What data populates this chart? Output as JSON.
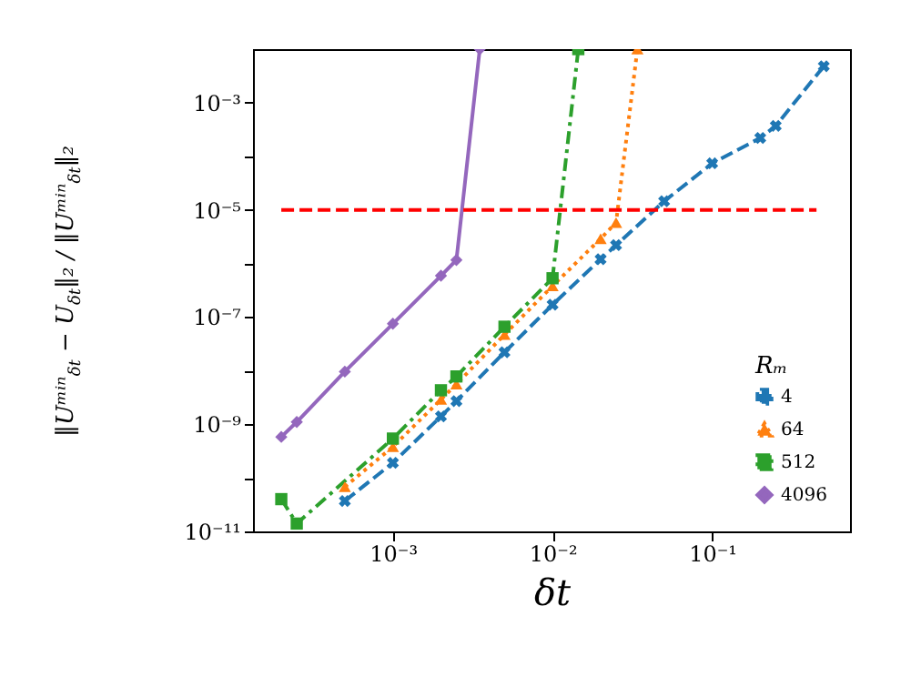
{
  "chart_data": {
    "type": "line",
    "xlabel": "δt",
    "ylabel": "‖Uᵐⁱⁿ$_{δt}$ − U$_{δt}$‖₂ / ‖Uᵐⁱⁿ$_{δt}$‖₂",
    "legend_title": "Rₘ",
    "log": "xy",
    "grid": false,
    "legend": "bottom right",
    "xlim": [
      0.000133,
      0.73
    ],
    "ylim": [
      1e-11,
      0.01
    ],
    "xticks": [
      {
        "value": 0.001,
        "label": "10⁻³"
      },
      {
        "value": 0.01,
        "label": "10⁻²"
      },
      {
        "value": 0.1,
        "label": "10⁻¹"
      }
    ],
    "yticks": [
      {
        "value": 1e-11,
        "label": "10⁻¹¹"
      },
      {
        "value": 1e-10,
        "label": null
      },
      {
        "value": 1e-09,
        "label": "10⁻⁹"
      },
      {
        "value": 1e-08,
        "label": null
      },
      {
        "value": 1e-07,
        "label": "10⁻⁷"
      },
      {
        "value": 1e-06,
        "label": null
      },
      {
        "value": 1e-05,
        "label": "10⁻⁵"
      },
      {
        "value": 0.0001,
        "label": null
      },
      {
        "value": 0.001,
        "label": "10⁻³"
      }
    ],
    "series": [
      {
        "name": "4",
        "color": "#1f77b4",
        "marker": "cross",
        "line_style": "dashed",
        "x": [
          0.0005,
          0.001,
          0.002,
          0.0025,
          0.005,
          0.01,
          0.02,
          0.025,
          0.05,
          0.1,
          0.2,
          0.25,
          0.5
        ],
        "values": [
          3.7e-11,
          1.9e-10,
          1.4e-09,
          2.7e-09,
          2.2e-08,
          1.7e-07,
          1.2e-06,
          2.2e-06,
          1.45e-05,
          7.4e-05,
          0.00022,
          0.00037,
          0.0048
        ]
      },
      {
        "name": "64",
        "color": "#ff7f0e",
        "marker": "triangle",
        "line_style": "dotted",
        "x": [
          0.0005,
          0.001,
          0.002,
          0.0025,
          0.005,
          0.01,
          0.02,
          0.025,
          0.034
        ],
        "values": [
          6.8e-11,
          3.8e-10,
          2.9e-09,
          5.6e-09,
          4.7e-08,
          3.8e-07,
          2.9e-06,
          5.8e-06,
          0.01
        ]
      },
      {
        "name": "512",
        "color": "#2ca02c",
        "marker": "square",
        "line_style": "dashdot",
        "x": [
          0.0002,
          0.00025,
          0.001,
          0.002,
          0.0025,
          0.005,
          0.01,
          0.0145
        ],
        "values": [
          4e-11,
          1.4e-11,
          5.4e-10,
          4.3e-09,
          7.8e-09,
          6.6e-08,
          5.3e-07,
          0.01
        ]
      },
      {
        "name": "4096",
        "color": "#9467bd",
        "marker": "diamond",
        "line_style": "solid",
        "x": [
          0.0002,
          0.00025,
          0.0005,
          0.001,
          0.002,
          0.0025,
          0.0035
        ],
        "values": [
          5.8e-10,
          1.1e-09,
          9.6e-09,
          7.5e-08,
          5.9e-07,
          1.16e-06,
          0.01
        ]
      },
      {
        "color": "#ff0000",
        "marker": "none",
        "line_style": "dashed",
        "x": [
          0.0002,
          0.45
        ],
        "values": [
          1e-05,
          1e-05
        ]
      }
    ]
  }
}
